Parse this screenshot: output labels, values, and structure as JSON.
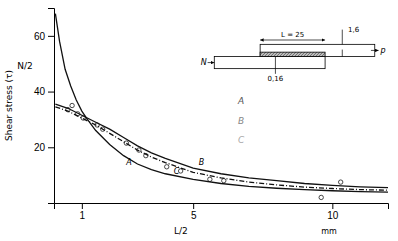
{
  "chart_data": {
    "type": "line",
    "y_label": "Shear stress (τ)",
    "xlim": [
      0,
      12
    ],
    "xticks": [
      1,
      5,
      10
    ],
    "ylim": [
      0,
      70
    ],
    "yticks": [
      20,
      40,
      60
    ],
    "series": [
      {
        "type": "scatter",
        "marker": "circle",
        "color": "#333333",
        "x": [
          0.5,
          0.65,
          0.85,
          1.05,
          1.55,
          1.75,
          2.6,
          3.05,
          3.3,
          4.05,
          4.55,
          5.6,
          6.1,
          9.6,
          10.3
        ],
        "values": [
          33.5,
          35.0,
          32.0,
          30.5,
          28.0,
          26.5,
          21.5,
          19.0,
          17.0,
          13.0,
          11.5,
          8.5,
          8.0,
          2.0,
          7.5
        ]
      },
      {
        "name": "A",
        "type": "line",
        "line_style": "solid",
        "color": "#111111",
        "x": [
          0.05,
          0.2,
          0.4,
          0.6,
          0.8,
          1.0,
          1.2,
          1.5,
          2.0,
          2.5,
          3.0,
          3.5,
          4.0,
          5.0,
          6.0,
          7.0,
          8.0,
          9.0,
          10.0,
          11.0,
          12.0
        ],
        "values": [
          68,
          58,
          48,
          42,
          37,
          33,
          30,
          26,
          21,
          17,
          14,
          12,
          10.5,
          8.5,
          7.0,
          6.0,
          5.3,
          4.8,
          4.4,
          4.1,
          3.9
        ]
      },
      {
        "name": "B",
        "type": "line",
        "line_style": "solid",
        "color": "#111111",
        "x": [
          0.05,
          0.5,
          1.0,
          1.5,
          2.0,
          2.5,
          3.0,
          3.5,
          4.0,
          5.0,
          6.0,
          7.0,
          8.0,
          9.0,
          10.0,
          11.0,
          12.0
        ],
        "values": [
          35.5,
          34.0,
          31.5,
          29.0,
          26.5,
          23.5,
          20.5,
          18.0,
          16.0,
          12.5,
          10.5,
          9.0,
          8.0,
          7.0,
          6.3,
          5.8,
          5.5
        ]
      },
      {
        "name": "C",
        "type": "line",
        "line_style": "dashdot",
        "color": "#111111",
        "x": [
          0.05,
          0.5,
          1.0,
          1.5,
          2.0,
          2.5,
          3.0,
          3.5,
          4.0,
          5.0,
          6.0,
          7.0,
          8.0,
          9.0,
          10.0,
          11.0,
          12.0
        ],
        "values": [
          34.5,
          33.0,
          30.5,
          28.0,
          25.0,
          22.0,
          19.0,
          16.5,
          14.5,
          11.0,
          9.0,
          7.5,
          6.5,
          5.7,
          5.2,
          4.8,
          4.6
        ]
      }
    ],
    "annotations": [
      "A",
      "B",
      "C",
      "N/2",
      "L/2",
      "mm",
      "L = 25",
      "N",
      "p",
      "0,16",
      "1,6"
    ]
  }
}
